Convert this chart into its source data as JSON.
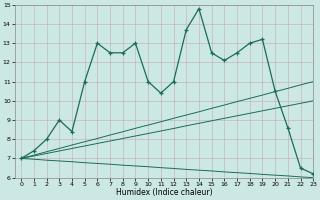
{
  "x": [
    0,
    1,
    2,
    3,
    4,
    5,
    6,
    7,
    8,
    9,
    10,
    11,
    12,
    13,
    14,
    15,
    16,
    17,
    18,
    19,
    20,
    21,
    22,
    23
  ],
  "humidex_line": [
    7.0,
    7.4,
    8.0,
    9.0,
    8.4,
    11.0,
    13.0,
    12.5,
    12.5,
    13.0,
    11.0,
    10.4,
    11.0,
    13.7,
    14.8,
    12.5,
    12.1,
    12.5,
    13.0,
    13.2,
    10.5,
    8.6,
    6.5,
    6.2
  ],
  "line_upper": [
    7.0,
    7.17,
    7.35,
    7.52,
    7.7,
    7.87,
    8.04,
    8.22,
    8.39,
    8.57,
    8.74,
    8.91,
    9.09,
    9.26,
    9.43,
    9.61,
    9.78,
    9.96,
    10.13,
    10.3,
    10.48,
    10.65,
    10.83,
    11.0
  ],
  "line_mid": [
    7.0,
    7.13,
    7.26,
    7.39,
    7.52,
    7.65,
    7.78,
    7.91,
    8.04,
    8.17,
    8.3,
    8.43,
    8.56,
    8.7,
    8.83,
    8.96,
    9.09,
    9.22,
    9.35,
    9.48,
    9.61,
    9.74,
    9.87,
    10.0
  ],
  "line_lower": [
    7.0,
    6.96,
    6.91,
    6.87,
    6.83,
    6.78,
    6.74,
    6.7,
    6.65,
    6.61,
    6.57,
    6.52,
    6.48,
    6.43,
    6.39,
    6.35,
    6.3,
    6.26,
    6.22,
    6.17,
    6.13,
    6.09,
    6.04,
    6.0
  ],
  "line_color": "#1a6b5a",
  "bg_color": "#cce8e4",
  "grid_major_color": "#aad4cc",
  "grid_minor_color": "#bbddd8",
  "xlabel": "Humidex (Indice chaleur)",
  "ylim": [
    6,
    15
  ],
  "xlim": [
    -0.5,
    23
  ],
  "yticks": [
    6,
    7,
    8,
    9,
    10,
    11,
    12,
    13,
    14,
    15
  ],
  "xticks": [
    0,
    1,
    2,
    3,
    4,
    5,
    6,
    7,
    8,
    9,
    10,
    11,
    12,
    13,
    14,
    15,
    16,
    17,
    18,
    19,
    20,
    21,
    22,
    23
  ]
}
